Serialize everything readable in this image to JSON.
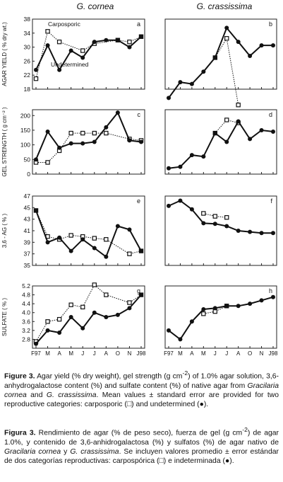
{
  "col_titles": [
    "G. cornea",
    "G. crassissima"
  ],
  "months_ticks": [
    "F97",
    "M",
    "A",
    "M",
    "J",
    "J",
    "A",
    "O",
    "N",
    "J98"
  ],
  "months_ticks_right": [
    "F97",
    "M",
    "A",
    "M",
    "J",
    "J",
    "A",
    "O",
    "N",
    "J98"
  ],
  "chart_data": [
    {
      "type": "line",
      "panel": "a",
      "species": "G. cornea",
      "ylabel": "AGAR YIELD ( % dry wt.)",
      "ylim": [
        18,
        38
      ],
      "yticks": [
        "18",
        "22",
        "26",
        "30",
        "34",
        "38"
      ],
      "annotations": [
        "Carposporic",
        "Undetermined"
      ],
      "series": [
        {
          "name": "Carposporic",
          "marker": "open-square",
          "x": [
            0,
            1,
            2,
            4,
            5,
            7,
            8,
            9
          ],
          "y": [
            21,
            34.5,
            31.5,
            29,
            31,
            32,
            31.5,
            33
          ]
        },
        {
          "name": "Undetermined",
          "marker": "filled-circle",
          "x": [
            0,
            1,
            2,
            3,
            4,
            5,
            6,
            7,
            8,
            9
          ],
          "y": [
            23.5,
            30.5,
            23.5,
            29,
            27,
            31.5,
            32,
            32,
            30,
            33
          ]
        }
      ]
    },
    {
      "type": "line",
      "panel": "b",
      "species": "G. crassissima",
      "ylim": [
        18,
        38
      ],
      "series": [
        {
          "name": "Carposporic",
          "marker": "open-square",
          "x": [
            4,
            5,
            6
          ],
          "y": [
            27,
            32.5,
            13.5
          ]
        },
        {
          "name": "Undetermined",
          "marker": "filled-circle",
          "x": [
            0,
            1,
            2,
            3,
            4,
            5,
            6,
            7,
            8,
            9
          ],
          "y": [
            15.5,
            20,
            19.5,
            23,
            27,
            35.5,
            31.5,
            27.5,
            30.5,
            30.5
          ]
        }
      ]
    },
    {
      "type": "line",
      "panel": "c",
      "species": "G. cornea",
      "ylabel": "GEL STRENGTH ( g cm⁻² )",
      "ylim": [
        0,
        220
      ],
      "yticks": [
        "0",
        "50",
        "100",
        "150",
        "200"
      ],
      "series": [
        {
          "name": "Carposporic",
          "marker": "open-square",
          "x": [
            0,
            1,
            2,
            3,
            4,
            5,
            6,
            8,
            9
          ],
          "y": [
            40,
            40,
            80,
            140,
            140,
            140,
            140,
            120,
            115
          ]
        },
        {
          "name": "Undetermined",
          "marker": "filled-circle",
          "x": [
            0,
            1,
            2,
            3,
            4,
            5,
            6,
            7,
            8,
            9
          ],
          "y": [
            50,
            145,
            90,
            105,
            105,
            110,
            160,
            210,
            115,
            110
          ]
        }
      ]
    },
    {
      "type": "line",
      "panel": "d",
      "species": "G. crassissima",
      "ylim": [
        0,
        220
      ],
      "series": [
        {
          "name": "Carposporic",
          "marker": "open-square",
          "x": [
            4,
            5,
            6
          ],
          "y": [
            140,
            185,
            175
          ]
        },
        {
          "name": "Undetermined",
          "marker": "filled-circle",
          "x": [
            0,
            1,
            2,
            3,
            4,
            5,
            6,
            7,
            8,
            9
          ],
          "y": [
            20,
            25,
            65,
            60,
            140,
            110,
            180,
            120,
            150,
            145
          ]
        }
      ]
    },
    {
      "type": "line",
      "panel": "e",
      "species": "G. cornea",
      "ylabel": "3,6 - AG ( % )",
      "ylim": [
        35,
        47
      ],
      "yticks": [
        "35",
        "37",
        "39",
        "41",
        "43",
        "45",
        "47"
      ],
      "series": [
        {
          "name": "Carposporic",
          "marker": "open-square",
          "x": [
            0,
            1,
            2,
            3,
            4,
            5,
            6,
            8,
            9
          ],
          "y": [
            44.5,
            40,
            39.5,
            40.2,
            40,
            39.7,
            39.5,
            37,
            37.5
          ]
        },
        {
          "name": "Undetermined",
          "marker": "filled-circle",
          "x": [
            0,
            1,
            2,
            3,
            4,
            5,
            6,
            7,
            8,
            9
          ],
          "y": [
            44.5,
            39,
            39.8,
            37.5,
            39.5,
            38,
            36.5,
            41.8,
            41.2,
            37.5
          ]
        }
      ]
    },
    {
      "type": "line",
      "panel": "f",
      "species": "G. crassissima",
      "ylim": [
        35,
        47
      ],
      "series": [
        {
          "name": "Carposporic",
          "marker": "open-square",
          "x": [
            3,
            4,
            5
          ],
          "y": [
            44,
            43.5,
            43.3
          ]
        },
        {
          "name": "Undetermined",
          "marker": "filled-circle",
          "x": [
            0,
            1,
            2,
            3,
            4,
            5,
            6,
            7,
            8,
            9
          ],
          "y": [
            45.3,
            46.2,
            44.7,
            42.3,
            42.2,
            41.8,
            41,
            40.8,
            40.6,
            40.6
          ]
        }
      ]
    },
    {
      "type": "line",
      "panel": "g",
      "species": "G. cornea",
      "ylabel": "SULFATE ( % )",
      "ylim": [
        2.4,
        5.2
      ],
      "yticks": [
        "2.8",
        "3.2",
        "3.6",
        "4.0",
        "4.4",
        "4.8",
        "5.2"
      ],
      "series": [
        {
          "name": "Carposporic",
          "marker": "open-square",
          "x": [
            0,
            1,
            2,
            3,
            4,
            5,
            6,
            8,
            9
          ],
          "y": [
            2.7,
            3.6,
            3.7,
            4.35,
            4.25,
            5.25,
            4.8,
            4.45,
            4.8
          ]
        },
        {
          "name": "Undetermined",
          "marker": "filled-circle",
          "x": [
            0,
            1,
            2,
            3,
            4,
            5,
            6,
            7,
            8,
            9
          ],
          "y": [
            2.6,
            3.2,
            3.1,
            3.8,
            3.3,
            4.0,
            3.8,
            3.9,
            4.2,
            4.8
          ]
        }
      ]
    },
    {
      "type": "line",
      "panel": "h",
      "species": "G. crassissima",
      "ylim": [
        2.4,
        5.2
      ],
      "series": [
        {
          "name": "Carposporic",
          "marker": "open-square",
          "x": [
            3,
            4,
            5
          ],
          "y": [
            3.95,
            4.05,
            4.3
          ]
        },
        {
          "name": "Undetermined",
          "marker": "filled-circle",
          "x": [
            0,
            1,
            2,
            3,
            4,
            5,
            6,
            7,
            8,
            9
          ],
          "y": [
            3.2,
            2.8,
            3.6,
            4.15,
            4.2,
            4.3,
            4.3,
            4.4,
            4.55,
            4.7
          ]
        }
      ]
    }
  ],
  "caption_en": {
    "label": "Figure 3.",
    "text_a": " Agar yield (% dry weight), gel strength (g cm",
    "sup": "-2",
    "text_b": ") of 1.0% agar solution, 3,6-anhydrogalactose content (%) and sulfate content (%) of native agar from ",
    "sp1": "Gracilaria cornea",
    "text_c": " and ",
    "sp2": "G. crassissima",
    "text_d": ". Mean values ± standard error are provided for two reproductive categories: carposporic (□) and undetermined (●)."
  },
  "caption_es": {
    "label": "Figura 3.",
    "text_a": " Rendimiento de agar (% de peso seco), fuerza de gel (g cm",
    "sup": "-2",
    "text_b": ") de agar 1.0%, y contenido de 3,6-anhidrogalactosa (%) y sulfatos (%) de agar nativo de ",
    "sp1": "Gracilaria cornea",
    "text_c": " y ",
    "sp2": "G. crassissima",
    "text_d": ". Se incluyen valores promedio ± error estándar de dos categorías reproductivas: carpospórica (□) e indeterminada (●)."
  }
}
